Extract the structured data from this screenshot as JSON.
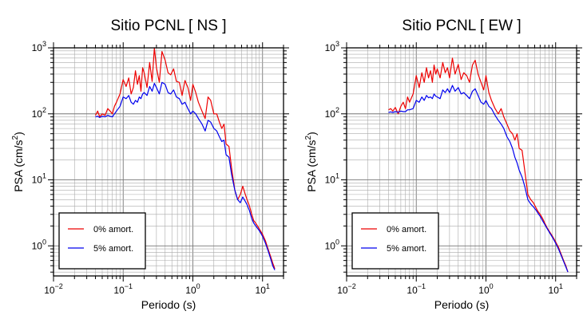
{
  "chart_data": [
    {
      "type": "line",
      "title": "Sitio PCNL [ NS ]",
      "xlabel": "Periodo (s)",
      "ylabel_main": "PSA (cm/s",
      "ylabel_sup": "2",
      "ylabel_end": ")",
      "x_scale": "log",
      "y_scale": "log",
      "xlim": [
        0.01,
        20
      ],
      "ylim": [
        0.35,
        1000
      ],
      "x_ticks": [
        {
          "value": 0.01,
          "base": "10",
          "exp": "−2"
        },
        {
          "value": 0.1,
          "base": "10",
          "exp": "−1"
        },
        {
          "value": 1,
          "base": "10",
          "exp": "0"
        },
        {
          "value": 10,
          "base": "10",
          "exp": "1"
        }
      ],
      "y_ticks": [
        {
          "value": 1,
          "base": "10",
          "exp": "0"
        },
        {
          "value": 10,
          "base": "10",
          "exp": "1"
        },
        {
          "value": 100,
          "base": "10",
          "exp": "2"
        },
        {
          "value": 1000,
          "base": "10",
          "exp": "3"
        }
      ],
      "grid": true,
      "legend_position": "bottom-left",
      "series": [
        {
          "name": "0% amort.",
          "color": "#ee0000",
          "x": [
            0.04,
            0.043,
            0.046,
            0.05,
            0.055,
            0.06,
            0.065,
            0.07,
            0.075,
            0.08,
            0.09,
            0.1,
            0.11,
            0.12,
            0.13,
            0.14,
            0.15,
            0.16,
            0.17,
            0.18,
            0.19,
            0.2,
            0.22,
            0.24,
            0.26,
            0.28,
            0.3,
            0.33,
            0.36,
            0.4,
            0.44,
            0.48,
            0.53,
            0.58,
            0.64,
            0.7,
            0.77,
            0.85,
            0.93,
            1.0,
            1.1,
            1.2,
            1.35,
            1.5,
            1.65,
            1.8,
            2.0,
            2.2,
            2.4,
            2.6,
            2.8,
            3.0,
            3.3,
            3.6,
            4.0,
            4.4,
            4.8,
            5.2,
            5.6,
            6.0,
            6.5,
            7.0,
            7.5,
            8.0,
            9.0,
            10.0,
            11.0,
            12.0,
            13.0,
            14.0,
            15.0
          ],
          "y": [
            95,
            110,
            90,
            100,
            95,
            120,
            110,
            100,
            130,
            150,
            200,
            330,
            260,
            350,
            200,
            250,
            450,
            280,
            380,
            220,
            500,
            420,
            250,
            600,
            310,
            1000,
            500,
            300,
            880,
            650,
            420,
            390,
            480,
            310,
            300,
            190,
            320,
            250,
            160,
            280,
            210,
            150,
            110,
            85,
            180,
            160,
            100,
            100,
            75,
            60,
            70,
            35,
            32,
            15,
            7,
            5,
            6,
            8,
            6.2,
            5,
            4,
            3,
            2.4,
            2.2,
            1.8,
            1.5,
            1.2,
            0.9,
            0.7,
            0.55,
            0.45
          ]
        },
        {
          "name": "5% amort.",
          "color": "#0000ee",
          "x": [
            0.04,
            0.043,
            0.046,
            0.05,
            0.055,
            0.06,
            0.065,
            0.07,
            0.075,
            0.08,
            0.09,
            0.1,
            0.11,
            0.12,
            0.13,
            0.14,
            0.15,
            0.16,
            0.17,
            0.18,
            0.19,
            0.2,
            0.22,
            0.24,
            0.26,
            0.28,
            0.3,
            0.33,
            0.36,
            0.4,
            0.44,
            0.48,
            0.53,
            0.58,
            0.64,
            0.7,
            0.77,
            0.85,
            0.93,
            1.0,
            1.1,
            1.2,
            1.35,
            1.5,
            1.65,
            1.8,
            2.0,
            2.2,
            2.4,
            2.6,
            2.8,
            3.0,
            3.3,
            3.6,
            4.0,
            4.4,
            4.8,
            5.2,
            5.6,
            6.0,
            6.5,
            7.0,
            7.5,
            8.0,
            9.0,
            10.0,
            11.0,
            12.0,
            13.0,
            14.0,
            15.0
          ],
          "y": [
            90,
            92,
            88,
            92,
            90,
            95,
            92,
            90,
            100,
            110,
            130,
            180,
            170,
            190,
            150,
            140,
            160,
            150,
            180,
            170,
            200,
            210,
            190,
            260,
            220,
            290,
            250,
            200,
            300,
            280,
            210,
            200,
            230,
            180,
            170,
            140,
            150,
            120,
            100,
            110,
            100,
            85,
            70,
            55,
            80,
            75,
            60,
            55,
            45,
            38,
            40,
            24,
            22,
            12,
            7,
            5,
            4.5,
            5.5,
            4.8,
            4.2,
            3.4,
            2.6,
            2.2,
            2.0,
            1.7,
            1.4,
            1.1,
            0.85,
            0.65,
            0.5,
            0.43
          ]
        }
      ]
    },
    {
      "type": "line",
      "title": "Sitio PCNL [ EW ]",
      "xlabel": "Periodo (s)",
      "ylabel_main": "PSA (cm/s",
      "ylabel_sup": "2",
      "ylabel_end": ")",
      "x_scale": "log",
      "y_scale": "log",
      "xlim": [
        0.01,
        20
      ],
      "ylim": [
        0.35,
        1000
      ],
      "x_ticks": [
        {
          "value": 0.01,
          "base": "10",
          "exp": "−2"
        },
        {
          "value": 0.1,
          "base": "10",
          "exp": "−1"
        },
        {
          "value": 1,
          "base": "10",
          "exp": "0"
        },
        {
          "value": 10,
          "base": "10",
          "exp": "1"
        }
      ],
      "y_ticks": [
        {
          "value": 1,
          "base": "10",
          "exp": "0"
        },
        {
          "value": 10,
          "base": "10",
          "exp": "1"
        },
        {
          "value": 100,
          "base": "10",
          "exp": "2"
        },
        {
          "value": 1000,
          "base": "10",
          "exp": "3"
        }
      ],
      "grid": true,
      "legend_position": "bottom-left",
      "series": [
        {
          "name": "0% amort.",
          "color": "#ee0000",
          "x": [
            0.04,
            0.043,
            0.046,
            0.05,
            0.055,
            0.06,
            0.065,
            0.07,
            0.075,
            0.08,
            0.09,
            0.1,
            0.11,
            0.12,
            0.13,
            0.14,
            0.15,
            0.16,
            0.17,
            0.18,
            0.19,
            0.2,
            0.22,
            0.24,
            0.26,
            0.28,
            0.3,
            0.33,
            0.36,
            0.4,
            0.44,
            0.48,
            0.53,
            0.58,
            0.64,
            0.7,
            0.77,
            0.85,
            0.93,
            1.0,
            1.1,
            1.2,
            1.35,
            1.5,
            1.65,
            1.8,
            2.0,
            2.2,
            2.4,
            2.6,
            2.8,
            3.0,
            3.3,
            3.6,
            4.0,
            4.4,
            4.8,
            5.2,
            5.6,
            6.0,
            6.5,
            7.0,
            7.5,
            8.0,
            9.0,
            10.0,
            11.0,
            12.0,
            13.0,
            14.0,
            15.0
          ],
          "y": [
            115,
            120,
            110,
            125,
            100,
            130,
            150,
            120,
            180,
            150,
            200,
            380,
            250,
            420,
            300,
            500,
            350,
            450,
            300,
            550,
            400,
            480,
            350,
            600,
            420,
            500,
            350,
            700,
            400,
            560,
            330,
            420,
            380,
            300,
            550,
            650,
            400,
            300,
            230,
            380,
            210,
            160,
            120,
            100,
            120,
            90,
            70,
            55,
            50,
            40,
            50,
            30,
            28,
            14,
            6,
            5,
            4.5,
            3.8,
            3.3,
            3,
            2.6,
            2.2,
            1.9,
            1.7,
            1.4,
            1.15,
            0.95,
            0.75,
            0.6,
            0.5,
            0.4
          ]
        },
        {
          "name": "5% amort.",
          "color": "#0000ee",
          "x": [
            0.04,
            0.043,
            0.046,
            0.05,
            0.055,
            0.06,
            0.065,
            0.07,
            0.075,
            0.08,
            0.09,
            0.1,
            0.11,
            0.12,
            0.13,
            0.14,
            0.15,
            0.16,
            0.17,
            0.18,
            0.19,
            0.2,
            0.22,
            0.24,
            0.26,
            0.28,
            0.3,
            0.33,
            0.36,
            0.4,
            0.44,
            0.48,
            0.53,
            0.58,
            0.64,
            0.7,
            0.77,
            0.85,
            0.93,
            1.0,
            1.1,
            1.2,
            1.35,
            1.5,
            1.65,
            1.8,
            2.0,
            2.2,
            2.4,
            2.6,
            2.8,
            3.0,
            3.3,
            3.6,
            4.0,
            4.4,
            4.8,
            5.2,
            5.6,
            6.0,
            6.5,
            7.0,
            7.5,
            8.0,
            9.0,
            10.0,
            11.0,
            12.0,
            13.0,
            14.0,
            15.0
          ],
          "y": [
            105,
            107,
            105,
            108,
            106,
            110,
            108,
            108,
            115,
            115,
            120,
            160,
            150,
            180,
            160,
            190,
            175,
            180,
            170,
            200,
            185,
            180,
            170,
            230,
            210,
            240,
            210,
            270,
            220,
            250,
            200,
            210,
            190,
            170,
            220,
            240,
            190,
            150,
            140,
            160,
            130,
            120,
            95,
            80,
            70,
            60,
            45,
            38,
            30,
            22,
            18,
            14,
            11,
            8,
            5,
            4.3,
            3.9,
            3.5,
            3.1,
            2.8,
            2.4,
            2.1,
            1.85,
            1.65,
            1.35,
            1.1,
            0.9,
            0.72,
            0.58,
            0.48,
            0.4
          ]
        }
      ]
    }
  ]
}
